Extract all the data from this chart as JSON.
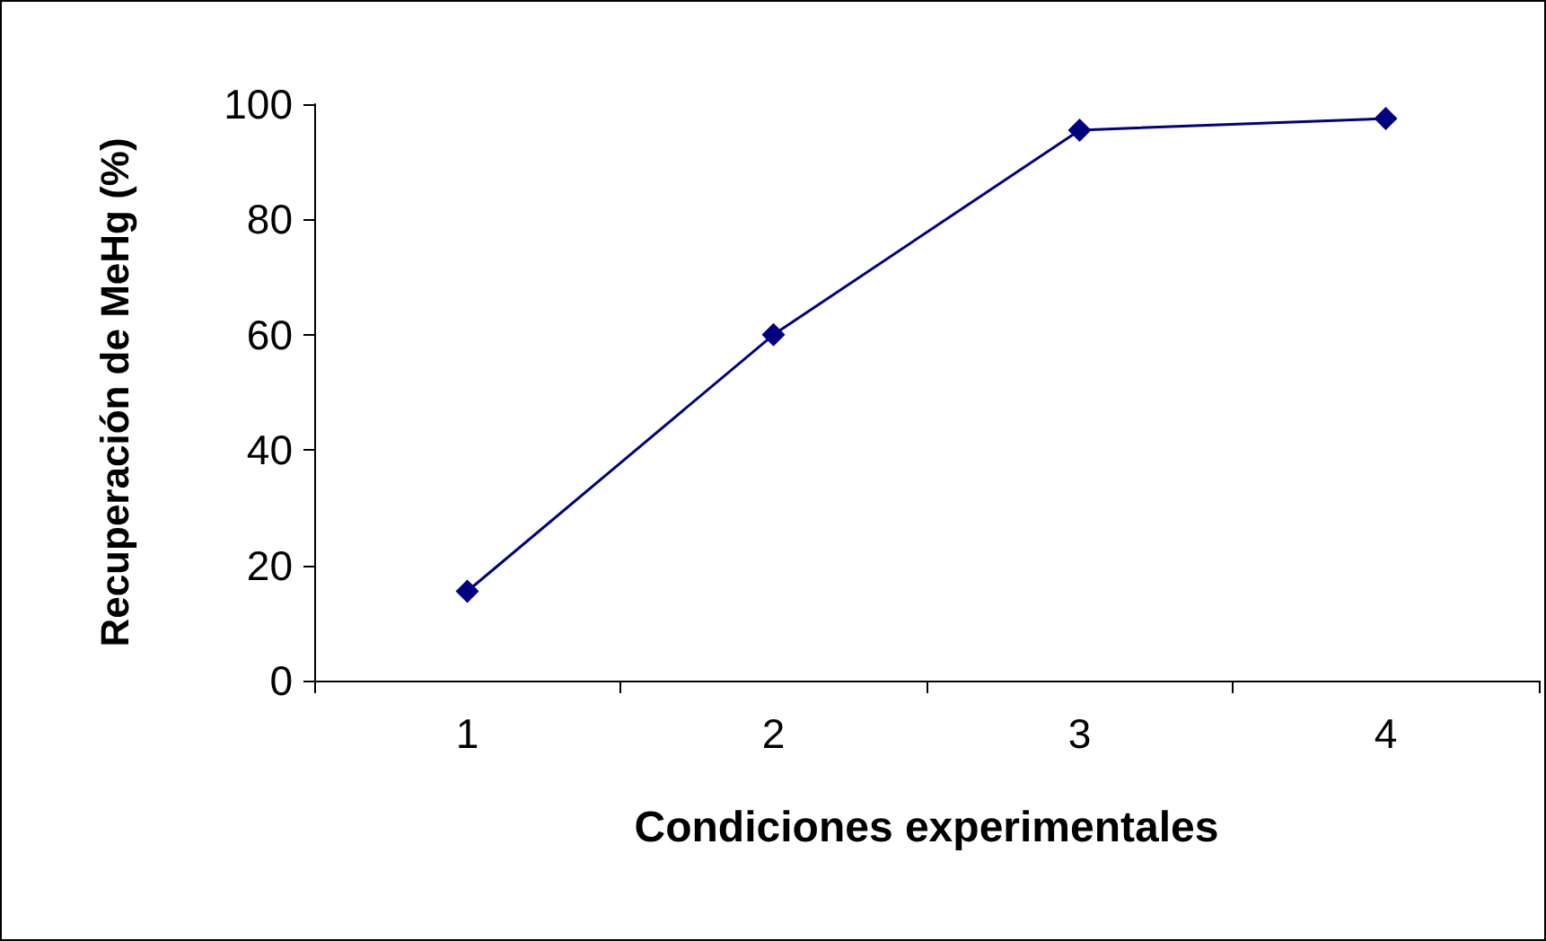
{
  "chart_data": {
    "type": "line",
    "xlabel": "Condiciones experimentales",
    "ylabel": "Recuperación de MeHg (%)",
    "categories": [
      "1",
      "2",
      "3",
      "4"
    ],
    "series": [
      {
        "color": "#000080",
        "values": [
          15.5,
          60,
          95.5,
          97.5
        ]
      }
    ],
    "ylim": [
      0,
      100
    ],
    "yticks": [
      0,
      20,
      40,
      60,
      80,
      100
    ],
    "grid": false,
    "marker": "diamond",
    "line_style": "solid"
  }
}
